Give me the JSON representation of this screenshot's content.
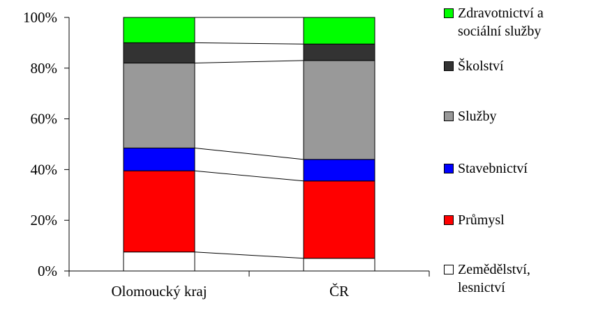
{
  "chart_data": {
    "type": "bar",
    "stacked": true,
    "normalized": true,
    "categories": [
      "Olomoucký kraj",
      "ČR"
    ],
    "series": [
      {
        "name": "Zemědělství,\nlesnictví",
        "color": "#ffffff",
        "values": [
          7.5,
          5.0
        ]
      },
      {
        "name": "Průmysl",
        "color": "#ff0000",
        "values": [
          32.0,
          30.5
        ]
      },
      {
        "name": "Stavebnictví",
        "color": "#0000ff",
        "values": [
          9.0,
          8.5
        ]
      },
      {
        "name": "Služby",
        "color": "#999999",
        "values": [
          33.5,
          39.0
        ]
      },
      {
        "name": "Školství",
        "color": "#333333",
        "values": [
          8.0,
          6.5
        ]
      },
      {
        "name": "Zdravotnictví a\nsociální služby",
        "color": "#00ff00",
        "values": [
          10.0,
          10.5
        ]
      }
    ],
    "yticks": [
      "0%",
      "20%",
      "40%",
      "60%",
      "80%",
      "100%"
    ],
    "ylim": [
      0,
      100
    ],
    "legend_position": "right",
    "series_lines": true
  }
}
